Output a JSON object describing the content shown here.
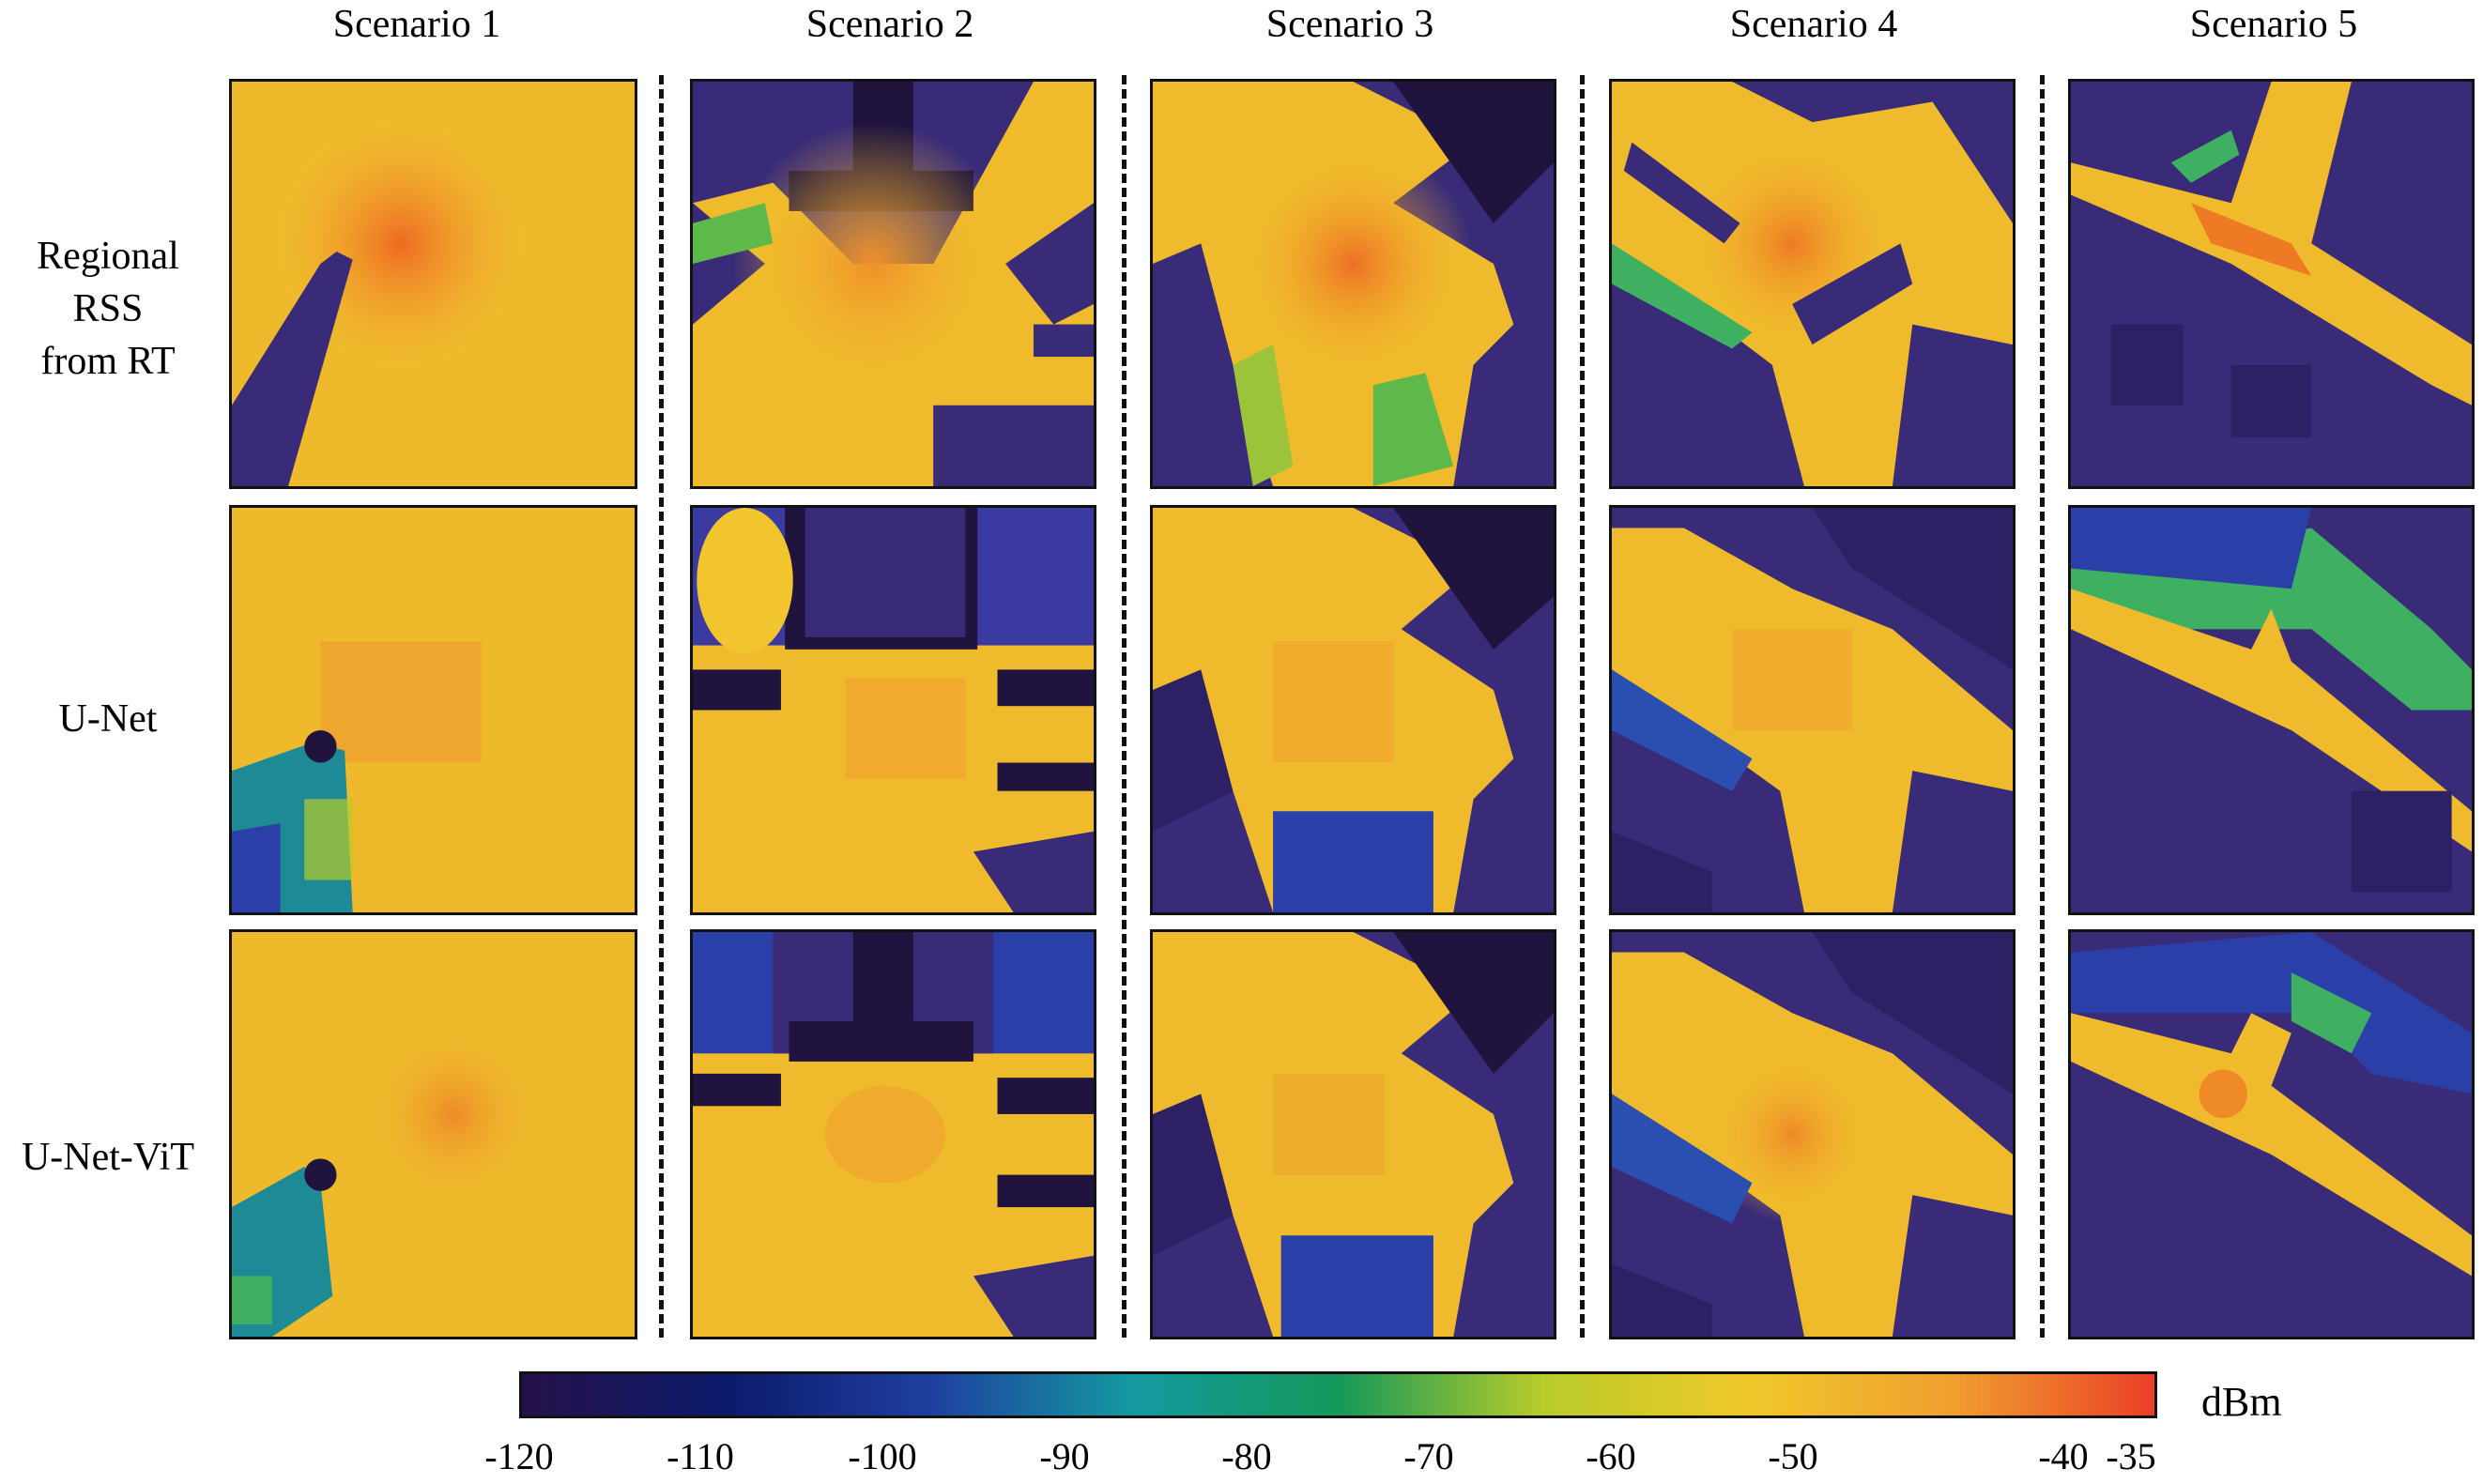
{
  "columns": [
    "Scenario 1",
    "Scenario 2",
    "Scenario 3",
    "Scenario 4",
    "Scenario 5"
  ],
  "rows": [
    {
      "lines": [
        "Regional",
        "RSS",
        "from RT"
      ]
    },
    {
      "lines": [
        "U-Net"
      ]
    },
    {
      "lines": [
        "U-Net-ViT"
      ]
    }
  ],
  "colorbar": {
    "unit": "dBm",
    "ticks": [
      "-120",
      "-110",
      "-100",
      "-90",
      "-80",
      "-70",
      "-60",
      "-50",
      "-40",
      "-35"
    ],
    "colors": [
      "#26124a",
      "#0c1a6b",
      "#1f3fa0",
      "#149aa0",
      "#14985a",
      "#b8cc2a",
      "#f0c82a",
      "#f0a030",
      "#ea3f26"
    ]
  },
  "palette": {
    "building": "#3a2b78",
    "building_dark": "#20143f",
    "signal": "#f2c42e",
    "hot": "#ee7a24",
    "green": "#3fb062",
    "teal": "#1d8a96",
    "blue": "#2a3fa8"
  }
}
